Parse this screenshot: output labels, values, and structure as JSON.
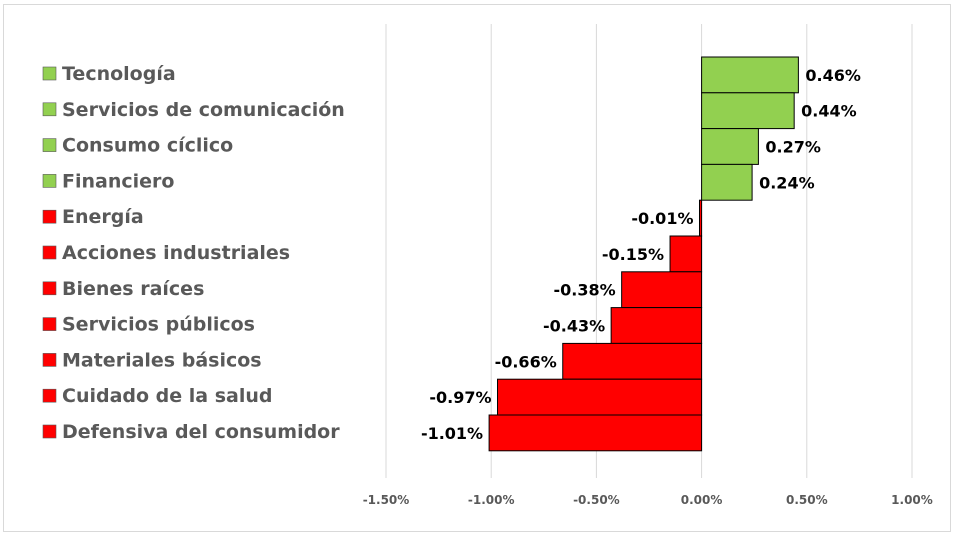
{
  "chart_data": {
    "type": "bar",
    "orientation": "horizontal",
    "categories": [
      "Tecnología",
      "Servicios de comunicación",
      "Consumo cíclico",
      "Financiero",
      "Energía",
      "Acciones industriales",
      "Bienes raíces",
      "Servicios públicos",
      "Materiales básicos",
      "Cuidado de la salud",
      "Defensiva del consumidor"
    ],
    "values": [
      0.46,
      0.44,
      0.27,
      0.24,
      -0.01,
      -0.15,
      -0.38,
      -0.43,
      -0.66,
      -0.97,
      -1.01
    ],
    "value_labels": [
      "0.46%",
      "0.44%",
      "0.27%",
      "0.24%",
      "-0.01%",
      "-0.15%",
      "-0.38%",
      "-0.43%",
      "-0.66%",
      "-0.97%",
      "-1.01%"
    ],
    "xlim": [
      -1.5,
      1.0
    ],
    "ticks": [
      -1.5,
      -1.0,
      -0.5,
      0.0,
      0.5,
      1.0
    ],
    "tick_labels": [
      "-1.50%",
      "-1.00%",
      "-0.50%",
      "0.00%",
      "0.50%",
      "1.00%"
    ],
    "grid": true,
    "legend": "left",
    "colors": {
      "positive": "#92d050",
      "negative": "#ff0000",
      "outline": "#000000"
    },
    "title": "",
    "xlabel": "",
    "ylabel": ""
  }
}
